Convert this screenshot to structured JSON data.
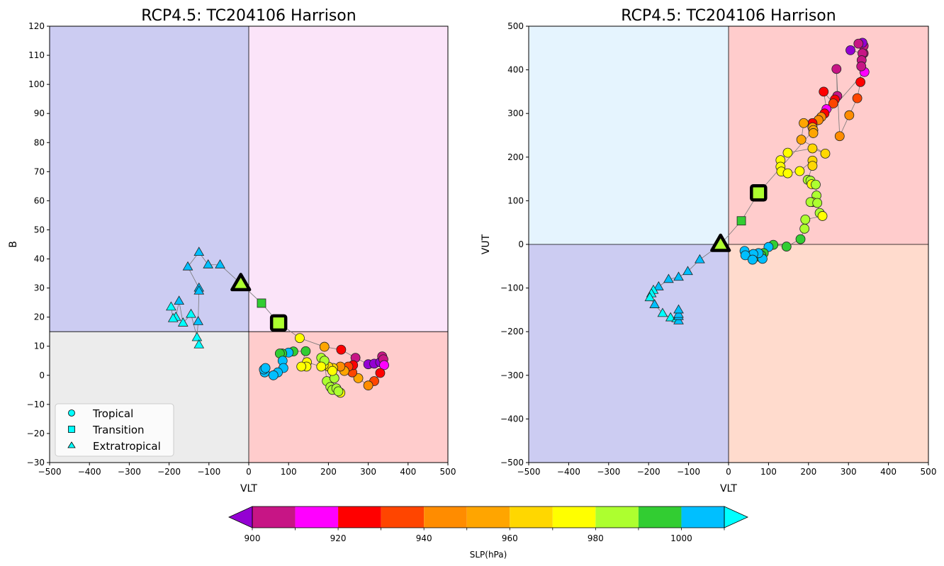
{
  "colorbar": {
    "label": "SLP(hPa)",
    "ticks": [
      900,
      920,
      940,
      960,
      980,
      1000
    ],
    "levels": [
      900,
      910,
      920,
      930,
      940,
      950,
      960,
      970,
      980,
      990,
      1000,
      1010
    ],
    "under_color": "#9400d3",
    "over_color": "#00ffff",
    "colors": [
      "#c71585",
      "#ff00ff",
      "#ff0000",
      "#ff4500",
      "#ff8c00",
      "#ffa500",
      "#ffd700",
      "#ffff00",
      "#adff2f",
      "#32cd32",
      "#00bfff"
    ]
  },
  "legend": {
    "entries": [
      {
        "label": "Tropical",
        "marker": "circle"
      },
      {
        "label": "Transition",
        "marker": "square"
      },
      {
        "label": "Extratropical",
        "marker": "triangle"
      }
    ],
    "marker_color": "#00ffff"
  },
  "chart_data": [
    {
      "type": "scatter",
      "title": "RCP4.5: TC204106 Harrison",
      "xlabel": "VLT",
      "ylabel": "B",
      "xlim": [
        -500,
        500
      ],
      "ylim": [
        -30,
        120
      ],
      "xticks": [
        -500,
        -400,
        -300,
        -200,
        -100,
        0,
        100,
        200,
        300,
        400,
        500
      ],
      "yticks": [
        -30,
        -20,
        -10,
        0,
        10,
        20,
        30,
        40,
        50,
        60,
        70,
        80,
        90,
        100,
        110,
        120
      ],
      "divider": {
        "x": 0,
        "y": 15
      },
      "quadrant_colors": {
        "upper_left": "#ccccf2",
        "upper_right": "#fbe4f9",
        "lower_left": "#ececec",
        "lower_right": "#ffcccc"
      },
      "legend_position": "lower-left",
      "start": {
        "x": -20,
        "y": 31.5,
        "marker": "triangle",
        "slp": 985
      },
      "end": {
        "x": 75,
        "y": 18,
        "marker": "square",
        "slp": 985
      },
      "points": [
        {
          "x": -20,
          "y": 31.5,
          "slp": 985,
          "m": "triangle"
        },
        {
          "x": 32,
          "y": 24.8,
          "slp": 995,
          "m": "square"
        },
        {
          "x": 75,
          "y": 18,
          "slp": 985,
          "m": "square"
        },
        {
          "x": 128,
          "y": 12.8,
          "slp": 975,
          "m": "circle"
        },
        {
          "x": 190,
          "y": 9.8,
          "slp": 955,
          "m": "circle"
        },
        {
          "x": 232,
          "y": 8.8,
          "slp": 925,
          "m": "circle"
        },
        {
          "x": 268,
          "y": 6,
          "slp": 905,
          "m": "circle"
        },
        {
          "x": 300,
          "y": 3.8,
          "slp": 895,
          "m": "circle"
        },
        {
          "x": 315,
          "y": 4,
          "slp": 895,
          "m": "circle"
        },
        {
          "x": 330,
          "y": 4.5,
          "slp": 895,
          "m": "circle"
        },
        {
          "x": 335,
          "y": 6.5,
          "slp": 905,
          "m": "circle"
        },
        {
          "x": 338,
          "y": 5.5,
          "slp": 905,
          "m": "circle"
        },
        {
          "x": 340,
          "y": 3.5,
          "slp": 915,
          "m": "circle"
        },
        {
          "x": 330,
          "y": 0.8,
          "slp": 925,
          "m": "circle"
        },
        {
          "x": 315,
          "y": -2,
          "slp": 935,
          "m": "circle"
        },
        {
          "x": 300,
          "y": -3.5,
          "slp": 945,
          "m": "circle"
        },
        {
          "x": 275,
          "y": -1,
          "slp": 950,
          "m": "circle"
        },
        {
          "x": 260,
          "y": 1,
          "slp": 930,
          "m": "circle"
        },
        {
          "x": 262,
          "y": 3.5,
          "slp": 925,
          "m": "circle"
        },
        {
          "x": 250,
          "y": 3,
          "slp": 935,
          "m": "circle"
        },
        {
          "x": 240,
          "y": 1.5,
          "slp": 955,
          "m": "circle"
        },
        {
          "x": 230,
          "y": 3,
          "slp": 945,
          "m": "circle"
        },
        {
          "x": 212,
          "y": 2.5,
          "slp": 965,
          "m": "circle"
        },
        {
          "x": 200,
          "y": 3,
          "slp": 965,
          "m": "circle"
        },
        {
          "x": 188,
          "y": 3.5,
          "slp": 975,
          "m": "circle"
        },
        {
          "x": 182,
          "y": 6,
          "slp": 985,
          "m": "circle"
        },
        {
          "x": 190,
          "y": 5,
          "slp": 985,
          "m": "circle"
        },
        {
          "x": 196,
          "y": -2,
          "slp": 985,
          "m": "circle"
        },
        {
          "x": 205,
          "y": -4,
          "slp": 985,
          "m": "circle"
        },
        {
          "x": 210,
          "y": -5,
          "slp": 985,
          "m": "circle"
        },
        {
          "x": 220,
          "y": -4.5,
          "slp": 985,
          "m": "circle"
        },
        {
          "x": 230,
          "y": -6,
          "slp": 975,
          "m": "circle"
        },
        {
          "x": 225,
          "y": -5.5,
          "slp": 985,
          "m": "circle"
        },
        {
          "x": 215,
          "y": -1,
          "slp": 985,
          "m": "circle"
        },
        {
          "x": 210,
          "y": 1.5,
          "slp": 975,
          "m": "circle"
        },
        {
          "x": 182,
          "y": 3,
          "slp": 975,
          "m": "circle"
        },
        {
          "x": 146,
          "y": 4.5,
          "slp": 975,
          "m": "circle"
        },
        {
          "x": 145,
          "y": 3,
          "slp": 975,
          "m": "circle"
        },
        {
          "x": 132,
          "y": 3,
          "slp": 975,
          "m": "circle"
        },
        {
          "x": 143,
          "y": 8.3,
          "slp": 995,
          "m": "circle"
        },
        {
          "x": 112,
          "y": 8.2,
          "slp": 995,
          "m": "circle"
        },
        {
          "x": 100,
          "y": 7.8,
          "slp": 1005,
          "m": "circle"
        },
        {
          "x": 84,
          "y": 7.5,
          "slp": 995,
          "m": "circle"
        },
        {
          "x": 78,
          "y": 7.5,
          "slp": 995,
          "m": "circle"
        },
        {
          "x": 85,
          "y": 5,
          "slp": 1005,
          "m": "circle"
        },
        {
          "x": 87,
          "y": 2.5,
          "slp": 1005,
          "m": "circle"
        },
        {
          "x": 73,
          "y": 1,
          "slp": 1005,
          "m": "circle"
        },
        {
          "x": 62,
          "y": 0,
          "slp": 1005,
          "m": "circle"
        },
        {
          "x": 40,
          "y": 1,
          "slp": 1005,
          "m": "circle"
        },
        {
          "x": 38,
          "y": 2,
          "slp": 1005,
          "m": "circle"
        },
        {
          "x": 42,
          "y": 2.5,
          "slp": 1005,
          "m": "circle"
        }
      ],
      "extratropical_points": [
        {
          "x": -20,
          "y": 31.5,
          "slp": 985
        },
        {
          "x": -72,
          "y": 38,
          "slp": 1005
        },
        {
          "x": -102,
          "y": 38,
          "slp": 1005
        },
        {
          "x": -125,
          "y": 42.3,
          "slp": 1005
        },
        {
          "x": -153,
          "y": 37.3,
          "slp": 1005
        },
        {
          "x": -125,
          "y": 30,
          "slp": 1005
        },
        {
          "x": -125,
          "y": 29,
          "slp": 1005
        },
        {
          "x": -127,
          "y": 18.5,
          "slp": 1005
        },
        {
          "x": -130,
          "y": 13,
          "slp": 1015
        },
        {
          "x": -125,
          "y": 10.5,
          "slp": 1015
        },
        {
          "x": -145,
          "y": 21,
          "slp": 1015
        },
        {
          "x": -165,
          "y": 18,
          "slp": 1015
        },
        {
          "x": -175,
          "y": 25.5,
          "slp": 1005
        },
        {
          "x": -183,
          "y": 20,
          "slp": 1015
        },
        {
          "x": -190,
          "y": 19.5,
          "slp": 1015
        },
        {
          "x": -195,
          "y": 23.5,
          "slp": 1015
        }
      ]
    },
    {
      "type": "scatter",
      "title": "RCP4.5: TC204106 Harrison",
      "xlabel": "VLT",
      "ylabel": "VUT",
      "xlim": [
        -500,
        500
      ],
      "ylim": [
        -500,
        500
      ],
      "xticks": [
        -500,
        -400,
        -300,
        -200,
        -100,
        0,
        100,
        200,
        300,
        400,
        500
      ],
      "yticks": [
        -500,
        -400,
        -300,
        -200,
        -100,
        0,
        100,
        200,
        300,
        400,
        500
      ],
      "divider": {
        "x": 0,
        "y": 0
      },
      "quadrant_colors": {
        "upper_left": "#e5f4fe",
        "upper_right": "#ffcccc",
        "lower_left": "#ccccf2",
        "lower_right": "#ffdbcd"
      },
      "start": {
        "x": -20,
        "y": 0,
        "marker": "triangle",
        "slp": 985
      },
      "end": {
        "x": 75,
        "y": 118,
        "marker": "square",
        "slp": 985
      },
      "points": [
        {
          "x": -20,
          "y": 0,
          "slp": 985,
          "m": "triangle"
        },
        {
          "x": 32,
          "y": 54,
          "slp": 995,
          "m": "square"
        },
        {
          "x": 75,
          "y": 118,
          "slp": 985,
          "m": "square"
        },
        {
          "x": 340,
          "y": 395,
          "slp": 915,
          "m": "circle"
        },
        {
          "x": 338,
          "y": 438,
          "slp": 905,
          "m": "circle"
        },
        {
          "x": 338,
          "y": 455,
          "slp": 905,
          "m": "circle"
        },
        {
          "x": 335,
          "y": 462,
          "slp": 895,
          "m": "circle"
        },
        {
          "x": 325,
          "y": 460,
          "slp": 905,
          "m": "circle"
        },
        {
          "x": 305,
          "y": 445,
          "slp": 895,
          "m": "circle"
        },
        {
          "x": 335,
          "y": 438,
          "slp": 905,
          "m": "circle"
        },
        {
          "x": 333,
          "y": 422,
          "slp": 905,
          "m": "circle"
        },
        {
          "x": 332,
          "y": 408,
          "slp": 905,
          "m": "circle"
        },
        {
          "x": 330,
          "y": 372,
          "slp": 925,
          "m": "circle"
        },
        {
          "x": 322,
          "y": 335,
          "slp": 935,
          "m": "circle"
        },
        {
          "x": 302,
          "y": 296,
          "slp": 945,
          "m": "circle"
        },
        {
          "x": 278,
          "y": 248,
          "slp": 945,
          "m": "circle"
        },
        {
          "x": 270,
          "y": 402,
          "slp": 905,
          "m": "circle"
        },
        {
          "x": 272,
          "y": 340,
          "slp": 905,
          "m": "circle"
        },
        {
          "x": 266,
          "y": 332,
          "slp": 925,
          "m": "circle"
        },
        {
          "x": 262,
          "y": 323,
          "slp": 935,
          "m": "circle"
        },
        {
          "x": 238,
          "y": 350,
          "slp": 925,
          "m": "circle"
        },
        {
          "x": 245,
          "y": 310,
          "slp": 915,
          "m": "circle"
        },
        {
          "x": 240,
          "y": 300,
          "slp": 925,
          "m": "circle"
        },
        {
          "x": 232,
          "y": 292,
          "slp": 945,
          "m": "circle"
        },
        {
          "x": 225,
          "y": 285,
          "slp": 945,
          "m": "circle"
        },
        {
          "x": 210,
          "y": 278,
          "slp": 925,
          "m": "circle"
        },
        {
          "x": 210,
          "y": 268,
          "slp": 955,
          "m": "circle"
        },
        {
          "x": 212,
          "y": 262,
          "slp": 955,
          "m": "circle"
        },
        {
          "x": 212,
          "y": 255,
          "slp": 955,
          "m": "circle"
        },
        {
          "x": 188,
          "y": 278,
          "slp": 955,
          "m": "circle"
        },
        {
          "x": 182,
          "y": 240,
          "slp": 955,
          "m": "circle"
        },
        {
          "x": 242,
          "y": 208,
          "slp": 965,
          "m": "circle"
        },
        {
          "x": 210,
          "y": 220,
          "slp": 965,
          "m": "circle"
        },
        {
          "x": 148,
          "y": 210,
          "slp": 975,
          "m": "circle"
        },
        {
          "x": 130,
          "y": 193,
          "slp": 975,
          "m": "circle"
        },
        {
          "x": 130,
          "y": 178,
          "slp": 975,
          "m": "circle"
        },
        {
          "x": 132,
          "y": 167,
          "slp": 975,
          "m": "circle"
        },
        {
          "x": 148,
          "y": 163,
          "slp": 975,
          "m": "circle"
        },
        {
          "x": 178,
          "y": 168,
          "slp": 975,
          "m": "circle"
        },
        {
          "x": 210,
          "y": 192,
          "slp": 965,
          "m": "circle"
        },
        {
          "x": 210,
          "y": 180,
          "slp": 965,
          "m": "circle"
        },
        {
          "x": 198,
          "y": 148,
          "slp": 985,
          "m": "circle"
        },
        {
          "x": 205,
          "y": 146,
          "slp": 985,
          "m": "circle"
        },
        {
          "x": 208,
          "y": 138,
          "slp": 975,
          "m": "circle"
        },
        {
          "x": 218,
          "y": 137,
          "slp": 985,
          "m": "circle"
        },
        {
          "x": 220,
          "y": 112,
          "slp": 985,
          "m": "circle"
        },
        {
          "x": 210,
          "y": 97,
          "slp": 975,
          "m": "circle"
        },
        {
          "x": 205,
          "y": 97,
          "slp": 985,
          "m": "circle"
        },
        {
          "x": 222,
          "y": 95,
          "slp": 985,
          "m": "circle"
        },
        {
          "x": 228,
          "y": 72,
          "slp": 985,
          "m": "circle"
        },
        {
          "x": 235,
          "y": 65,
          "slp": 975,
          "m": "circle"
        },
        {
          "x": 192,
          "y": 57,
          "slp": 985,
          "m": "circle"
        },
        {
          "x": 190,
          "y": 36,
          "slp": 985,
          "m": "circle"
        },
        {
          "x": 180,
          "y": 12,
          "slp": 995,
          "m": "circle"
        },
        {
          "x": 145,
          "y": -5,
          "slp": 995,
          "m": "circle"
        },
        {
          "x": 112,
          "y": -1,
          "slp": 995,
          "m": "circle"
        },
        {
          "x": 100,
          "y": -6,
          "slp": 1005,
          "m": "circle"
        },
        {
          "x": 88,
          "y": -20,
          "slp": 995,
          "m": "circle"
        },
        {
          "x": 82,
          "y": -25,
          "slp": 995,
          "m": "circle"
        },
        {
          "x": 75,
          "y": -28,
          "slp": 995,
          "m": "circle"
        },
        {
          "x": 85,
          "y": -33,
          "slp": 1005,
          "m": "circle"
        },
        {
          "x": 75,
          "y": -20,
          "slp": 1005,
          "m": "circle"
        },
        {
          "x": 62,
          "y": -22,
          "slp": 1005,
          "m": "circle"
        },
        {
          "x": 40,
          "y": -15,
          "slp": 1005,
          "m": "circle"
        },
        {
          "x": 42,
          "y": -25,
          "slp": 1005,
          "m": "circle"
        },
        {
          "x": 60,
          "y": -35,
          "slp": 1005,
          "m": "circle"
        }
      ],
      "extratropical_points": [
        {
          "x": -20,
          "y": 0,
          "slp": 985
        },
        {
          "x": -72,
          "y": -35,
          "slp": 1005
        },
        {
          "x": -102,
          "y": -62,
          "slp": 1005
        },
        {
          "x": -125,
          "y": -75,
          "slp": 1005
        },
        {
          "x": -150,
          "y": -80,
          "slp": 1005
        },
        {
          "x": -175,
          "y": -97,
          "slp": 1005
        },
        {
          "x": -188,
          "y": -105,
          "slp": 1015
        },
        {
          "x": -193,
          "y": -113,
          "slp": 1015
        },
        {
          "x": -197,
          "y": -122,
          "slp": 1015
        },
        {
          "x": -185,
          "y": -138,
          "slp": 1005
        },
        {
          "x": -165,
          "y": -158,
          "slp": 1015
        },
        {
          "x": -145,
          "y": -168,
          "slp": 1015
        },
        {
          "x": -130,
          "y": -170,
          "slp": 1015
        },
        {
          "x": -125,
          "y": -175,
          "slp": 1005
        },
        {
          "x": -125,
          "y": -165,
          "slp": 1005
        },
        {
          "x": -125,
          "y": -160,
          "slp": 1005
        },
        {
          "x": -125,
          "y": -150,
          "slp": 1005
        }
      ]
    }
  ]
}
